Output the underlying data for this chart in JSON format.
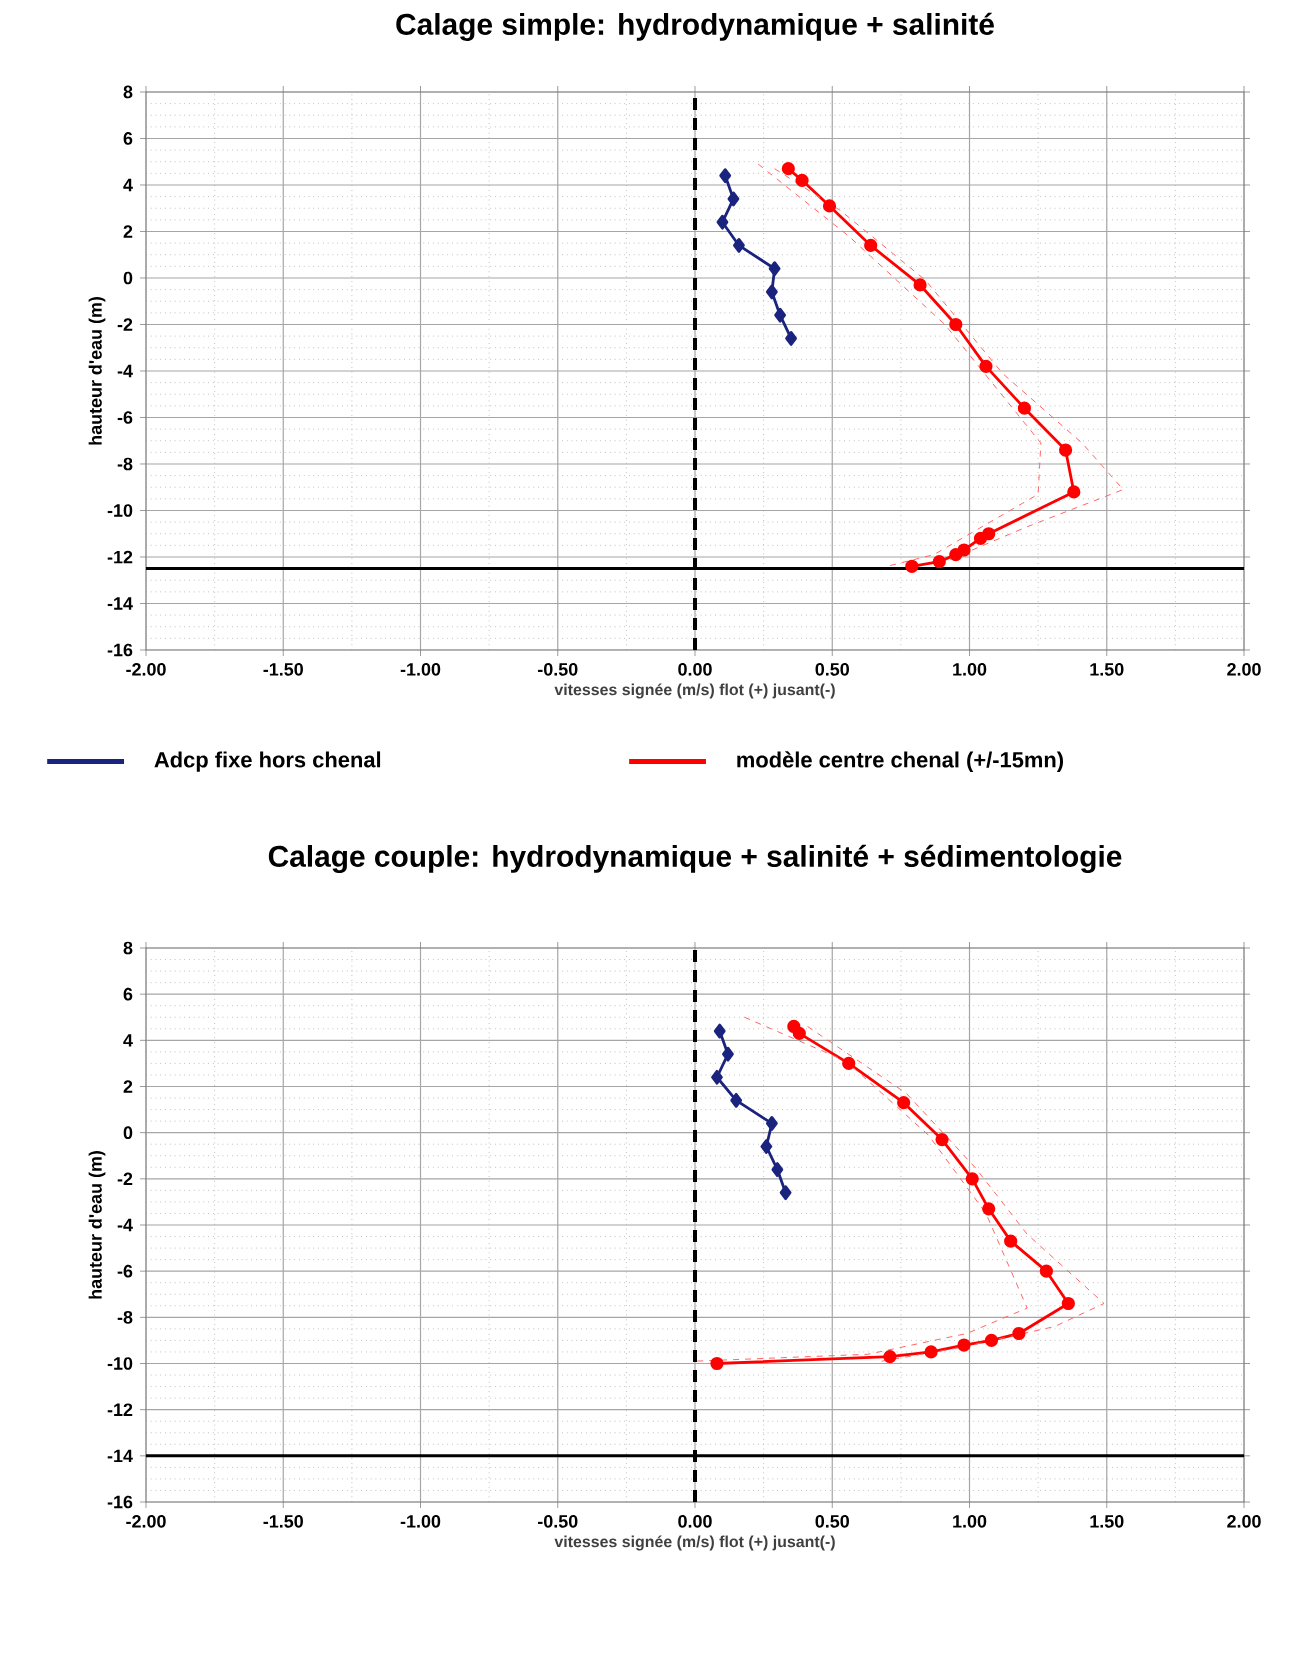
{
  "chart_data": [
    {
      "type": "line",
      "title": "Calage simple:  hydrodynamique + salinité",
      "xlabel": "vitesses signée (m/s) flot (+) jusant(-)",
      "ylabel": "hauteur d'eau (m)",
      "xlim": [
        -2,
        2
      ],
      "ylim": [
        -16,
        8
      ],
      "xticks": [
        {
          "value": -2,
          "label": "-2.00"
        },
        {
          "value": -1.5,
          "label": "-1.50"
        },
        {
          "value": -1,
          "label": "-1.00"
        },
        {
          "value": -0.5,
          "label": "-0.50"
        },
        {
          "value": 0,
          "label": "0.00"
        },
        {
          "value": 0.5,
          "label": "0.50"
        },
        {
          "value": 1,
          "label": "1.00"
        },
        {
          "value": 1.5,
          "label": "1.50"
        },
        {
          "value": 2,
          "label": "2.00"
        }
      ],
      "yticks": [
        8,
        6,
        4,
        2,
        0,
        -2,
        -4,
        -6,
        -8,
        -10,
        -12,
        -14,
        -16
      ],
      "grid": true,
      "legend": "bottom",
      "ref_lines": [
        {
          "axis": "x",
          "value": 0,
          "color": "#000000",
          "line_style": "dashed"
        },
        {
          "axis": "y",
          "value": -12.5,
          "color": "#000000",
          "line_style": "solid"
        }
      ],
      "series": [
        {
          "name": "Adcp fixe hors chenal",
          "color": "#1a237e",
          "marker": "diamond",
          "line_style": "solid",
          "x": [
            0.11,
            0.14,
            0.1,
            0.16,
            0.29,
            0.28,
            0.31,
            0.35
          ],
          "values": [
            4.4,
            3.4,
            2.4,
            1.4,
            0.4,
            -0.6,
            -1.6,
            -2.6
          ]
        },
        {
          "name": "modèle centre chenal (+/-15mn)",
          "color": "#ff0000",
          "marker": "circle",
          "line_style": "solid",
          "x": [
            0.34,
            0.39,
            0.49,
            0.64,
            0.82,
            0.95,
            1.06,
            1.2,
            1.35,
            1.38,
            1.07,
            1.04,
            0.98,
            0.95,
            0.89,
            0.79
          ],
          "values": [
            4.7,
            4.2,
            3.1,
            1.4,
            -0.3,
            -2.0,
            -3.8,
            -5.6,
            -7.4,
            -9.2,
            -11.0,
            -11.2,
            -11.7,
            -11.9,
            -12.2,
            -12.4
          ]
        },
        {
          "color": "#ff6666",
          "marker": "none",
          "line_style": "dashed",
          "x": [
            0.23,
            0.56,
            0.91,
            1.26,
            1.25,
            0.87,
            0.7
          ],
          "values": [
            4.9,
            1.8,
            -2.0,
            -7.1,
            -9.3,
            -11.9,
            -12.4
          ]
        },
        {
          "color": "#ff6666",
          "marker": "none",
          "line_style": "dashed",
          "x": [
            0.29,
            0.53,
            0.84,
            1.12,
            1.41,
            1.56,
            1.21,
            0.87
          ],
          "values": [
            4.7,
            2.9,
            -0.1,
            -4.1,
            -7.1,
            -9.1,
            -10.7,
            -12.4
          ]
        }
      ]
    },
    {
      "type": "line",
      "title": "Calage couple: hydrodynamique + salinité + sédimentologie",
      "xlabel": "vitesses signée (m/s) flot (+) jusant(-)",
      "ylabel": "hauteur d'eau (m)",
      "xlim": [
        -2,
        2
      ],
      "ylim": [
        -16,
        8
      ],
      "xticks": [
        {
          "value": -2,
          "label": "-2.00"
        },
        {
          "value": -1.5,
          "label": "-1.50"
        },
        {
          "value": -1,
          "label": "-1.00"
        },
        {
          "value": -0.5,
          "label": "-0.50"
        },
        {
          "value": 0,
          "label": "0.00"
        },
        {
          "value": 0.5,
          "label": "0.50"
        },
        {
          "value": 1,
          "label": "1.00"
        },
        {
          "value": 1.5,
          "label": "1.50"
        },
        {
          "value": 2,
          "label": "2.00"
        }
      ],
      "yticks": [
        8,
        6,
        4,
        2,
        0,
        -2,
        -4,
        -6,
        -8,
        -10,
        -12,
        -14,
        -16
      ],
      "grid": true,
      "ref_lines": [
        {
          "axis": "x",
          "value": 0,
          "color": "#000000",
          "line_style": "dashed"
        },
        {
          "axis": "y",
          "value": -14,
          "color": "#000000",
          "line_style": "solid"
        }
      ],
      "series": [
        {
          "color": "#1a237e",
          "marker": "diamond",
          "line_style": "solid",
          "x": [
            0.09,
            0.12,
            0.08,
            0.15,
            0.28,
            0.26,
            0.3,
            0.33
          ],
          "values": [
            4.4,
            3.4,
            2.4,
            1.4,
            0.4,
            -0.6,
            -1.6,
            -2.6
          ]
        },
        {
          "color": "#ff0000",
          "marker": "circle",
          "line_style": "solid",
          "x": [
            0.36,
            0.38,
            0.56,
            0.76,
            0.9,
            1.01,
            1.07,
            1.15,
            1.28,
            1.36,
            1.18,
            1.08,
            0.98,
            0.86,
            0.71,
            0.08
          ],
          "values": [
            4.6,
            4.3,
            3.0,
            1.3,
            -0.3,
            -2.0,
            -3.3,
            -4.7,
            -6.0,
            -7.4,
            -8.7,
            -9.0,
            -9.2,
            -9.5,
            -9.7,
            -10.0
          ]
        },
        {
          "color": "#ff6666",
          "marker": "none",
          "line_style": "dashed",
          "x": [
            0.18,
            0.55,
            0.85,
            1.06,
            1.21,
            0.99,
            0.63,
            0.0
          ],
          "values": [
            5.0,
            3.1,
            -0.1,
            -3.5,
            -7.6,
            -8.7,
            -9.6,
            -9.9
          ]
        },
        {
          "color": "#ff6666",
          "marker": "none",
          "line_style": "dashed",
          "x": [
            0.41,
            0.77,
            1.02,
            1.21,
            1.49,
            1.31,
            0.97,
            0.68
          ],
          "values": [
            4.6,
            1.7,
            -1.5,
            -4.4,
            -7.4,
            -8.4,
            -9.3,
            -9.9
          ]
        }
      ]
    }
  ]
}
